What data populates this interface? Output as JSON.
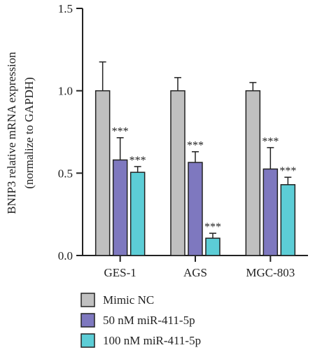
{
  "chart_data": {
    "type": "bar",
    "ylabel_line1": "BNIP3 relative mRNA expression",
    "ylabel_line2": "(normalize to GAPDH)",
    "categories": [
      "GES-1",
      "AGS",
      "MGC-803"
    ],
    "ylim": [
      0,
      1.5
    ],
    "yticks": [
      0.0,
      0.5,
      1.0,
      1.5
    ],
    "ytick_labels": [
      "0.0",
      "0.5",
      "1.0",
      "1.5"
    ],
    "series": [
      {
        "name": "Mimic NC",
        "color": "#c0c0c0",
        "values": [
          1.0,
          1.0,
          1.0
        ],
        "errors": [
          0.175,
          0.08,
          0.05
        ],
        "annotations": [
          "",
          "",
          ""
        ]
      },
      {
        "name": "50 nM miR-411-5p",
        "color": "#7e78bf",
        "values": [
          0.58,
          0.565,
          0.525
        ],
        "errors": [
          0.135,
          0.065,
          0.13
        ],
        "annotations": [
          "***",
          "***",
          "***"
        ]
      },
      {
        "name": "100 nM miR-411-5p",
        "color": "#5ccdd6",
        "values": [
          0.505,
          0.105,
          0.43
        ],
        "errors": [
          0.035,
          0.03,
          0.045
        ],
        "annotations": [
          "***",
          "***",
          "***"
        ]
      }
    ],
    "legend_position": "bottom-center"
  }
}
